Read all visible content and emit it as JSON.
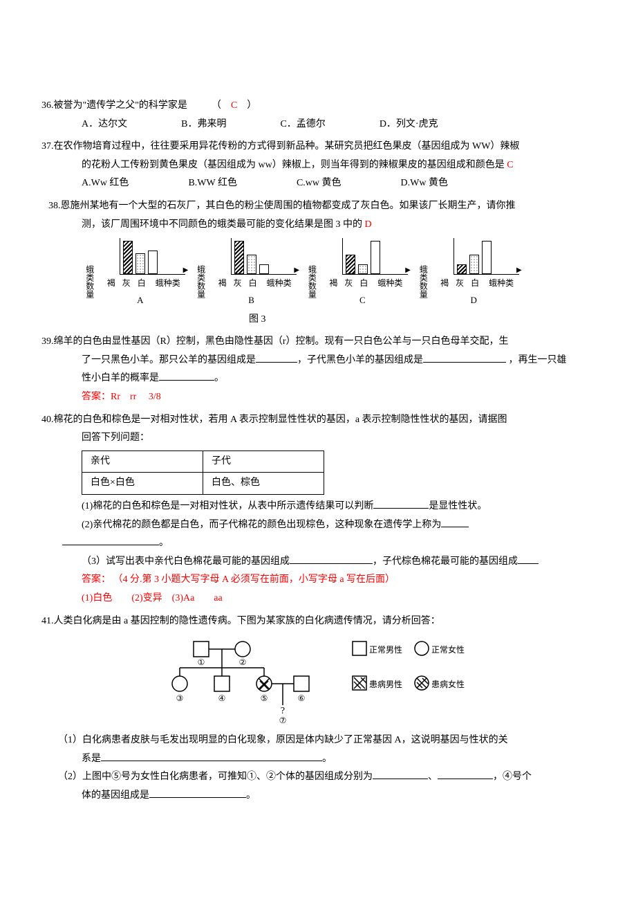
{
  "colors": {
    "text": "#000000",
    "answer": "#ff0000",
    "bg": "#ffffff"
  },
  "q36": {
    "num": "36.",
    "stem": "被誉为\"遗传学之父\"的科学家是",
    "answer": "C",
    "opts": {
      "a": "A．达尔文",
      "b": "B．弗来明",
      "c": "C．孟德尔",
      "d": "D．列文·虎克"
    }
  },
  "q37": {
    "num": "37.",
    "stem1": "在农作物培育过程中，往往要采用异花传粉的方式得到新品种。某研究员把红色果皮（基因组成为 WW）辣椒",
    "stem2": "的花粉人工传粉到黄色果皮（基因组成为 ww）辣椒上，则当年得到的辣椒果皮的基因组成和颜色是",
    "answer": "C",
    "opts": {
      "a": "A.Ww 红色",
      "b": "B.WW 红色",
      "c": "C.ww 黄色",
      "d": "D.Ww 黄色"
    }
  },
  "q38": {
    "num": "38.",
    "stem1": "恩施州某地有一个大型的石灰厂，其白色的粉尘使周围的植物都变成了灰白色。如果该厂长期生产，请你推",
    "stem2": "测，该厂周围环境中不同颜色的蛾类最可能的变化结果是图 3 中的",
    "answer": "D",
    "charts": {
      "ylabel": "蛾类数量",
      "xitems": [
        "褐",
        "灰",
        "白"
      ],
      "xcat": "蛾种类",
      "A": {
        "label": "A",
        "vals": [
          48,
          30,
          34
        ]
      },
      "B": {
        "label": "B",
        "vals": [
          48,
          28,
          14
        ]
      },
      "C": {
        "label": "C",
        "vals": [
          28,
          14,
          48
        ]
      },
      "D": {
        "label": "D",
        "vals": [
          14,
          28,
          48
        ]
      }
    },
    "caption": "图 3"
  },
  "q39": {
    "num": "39.",
    "stem1": "绵羊的白色由显性基因（R）控制，黑色由隐性基因（r）控制。现有一只白色公羊与一只白色母羊交配，生",
    "stem2a": "了一只黑色小羊。那只公羊的基因组成是",
    "stem2b": "，子代黑色小羊的基因组成是",
    "stem2c": " ，再生一只雄",
    "stem3a": "性小白羊的概率是",
    "stem3b": "。",
    "ans_label": "答案：",
    "ans": "Rr　rr　 3/8"
  },
  "q40": {
    "num": "40.",
    "stem1": "棉花的白色和棕色是一对相对性状，若用 A 表示控制显性性状的基因，a 表示控制隐性性状的基因，请据图",
    "stem2": "回答下列问题：",
    "table": {
      "h1": "亲代",
      "h2": "子代",
      "r1": "白色×白色",
      "r2": "白色、棕色"
    },
    "s1a": "(1)棉花的白色和棕色是一对相对性状，从表中所示遗传结果可以判断",
    "s1b": "是显性性状。",
    "s2": "(2)亲代棉花的颜色都是白色，而子代棉花的颜色出现棕色，这种现象在遗传学上称为",
    "period": "。",
    "s3a": "（3）试写出表中亲代白色棉花最可能的基因组成",
    "s3b": "，子代棕色棉花最可能的基因组成",
    "ans_label": "答案：  ",
    "ans_note": "（4 分.第 3 小题大写字母 A 必须写在前面，小写字母 a 写在后面）",
    "s1ans": "(1)白色",
    "s2ans": "(2)变异",
    "s3ans": "(3)Aa　　aa"
  },
  "q41": {
    "num": "41.",
    "stem": "人类白化病是由 a 基因控制的隐性遗传病。下图为某家族的白化病遗传情况，请分析回答：",
    "legend": {
      "nm": "正常男性",
      "nf": "正常女性",
      "am": "患病男性",
      "af": "患病女性"
    },
    "s1a": "（1）白化病患者皮肤与毛发出现明显的白化现象，原因是体内缺少了正常基因 A，这说明基因与性状的关",
    "s1b": "系是",
    "period": "。",
    "s2a": "（2）上图中⑤号为女性白化病患者，可推知①、②个体的基因组成分别为",
    "s2b": "、",
    "s2c": "，④号个",
    "s2d": "体的基因组成是",
    "nodes": [
      "①",
      "②",
      "③",
      "④",
      "⑤",
      "⑥",
      "⑦"
    ]
  }
}
